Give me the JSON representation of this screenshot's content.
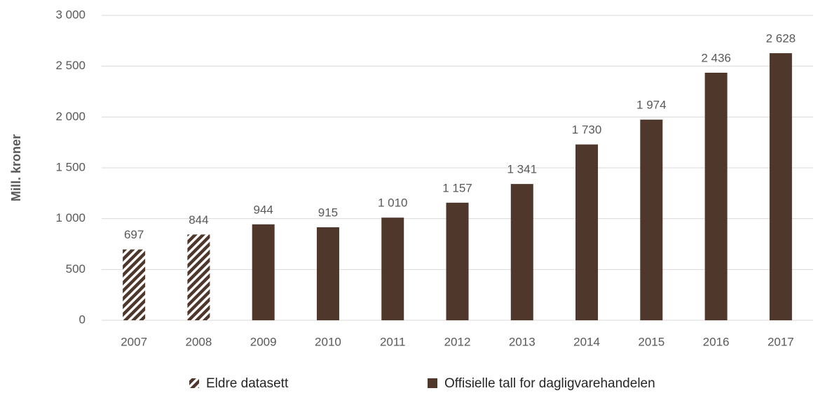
{
  "chart_data": {
    "type": "bar",
    "ylabel": "Mill. kroner",
    "categories": [
      "2007",
      "2008",
      "2009",
      "2010",
      "2011",
      "2012",
      "2013",
      "2014",
      "2015",
      "2016",
      "2017"
    ],
    "series": [
      {
        "name": "Eldre datasett",
        "color": "#4f372b",
        "hatch": true,
        "values": [
          697,
          844,
          null,
          null,
          null,
          null,
          null,
          null,
          null,
          null,
          null
        ],
        "value_labels": [
          "697",
          "844",
          null,
          null,
          null,
          null,
          null,
          null,
          null,
          null,
          null
        ]
      },
      {
        "name": "Offisielle tall for dagligvarehandelen",
        "color": "#4f372b",
        "hatch": false,
        "values": [
          null,
          null,
          944,
          915,
          1010,
          1157,
          1341,
          1730,
          1974,
          2436,
          2628
        ],
        "value_labels": [
          null,
          null,
          "944",
          "915",
          "1 010",
          "1 157",
          "1 341",
          "1 730",
          "1 974",
          "2 436",
          "2 628"
        ]
      }
    ],
    "ylim": [
      0,
      3000
    ],
    "yticks": [
      0,
      500,
      {
        "value": 1000,
        "label": "1 000"
      },
      {
        "value": 1500,
        "label": "1 500"
      },
      {
        "value": 2000,
        "label": "2 000"
      },
      {
        "value": 2500,
        "label": "2 500"
      },
      {
        "value": 3000,
        "label": "3 000"
      }
    ],
    "grid": true,
    "legend": "bottom"
  }
}
